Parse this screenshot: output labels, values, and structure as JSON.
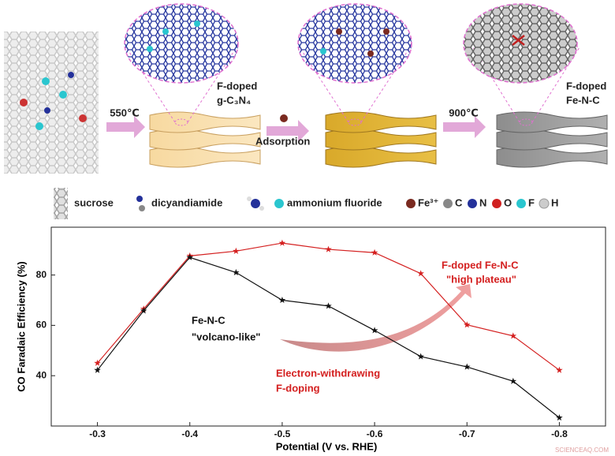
{
  "schematic": {
    "step1_temp": "550℃",
    "product1_line1": "F-doped",
    "product1_line2": "g-C₃N₄",
    "step2": "Adsorption",
    "step3_temp": "900℃",
    "product3_line1": "F-doped",
    "product3_line2": "Fe-N-C",
    "legend": [
      "sucrose",
      "dicyandiamide",
      "ammonium fluoride",
      "Fe³⁺",
      "C",
      "N",
      "O",
      "F",
      "H"
    ]
  },
  "chart_data": {
    "type": "line",
    "x_label": "Potential (V vs. RHE)",
    "y_label": "CO Faradaic Efficiency (%)",
    "x": [
      -0.3,
      -0.35,
      -0.4,
      -0.45,
      -0.5,
      -0.55,
      -0.6,
      -0.65,
      -0.7,
      -0.75,
      -0.8
    ],
    "series": [
      {
        "name": "F-doped Fe-N-C",
        "color": "#d42020",
        "values": [
          45,
          66.5,
          87.6,
          89.5,
          92.7,
          90.2,
          88.9,
          80.6,
          60.2,
          55.8,
          42.2
        ]
      },
      {
        "name": "Fe-N-C",
        "color": "#111111",
        "values": [
          42.2,
          65.8,
          87,
          81,
          70,
          67.7,
          58,
          47.6,
          43.5,
          37.8,
          23.3
        ]
      }
    ],
    "annotations": [
      {
        "text": "\"high plateau\"",
        "color": "#d42020"
      },
      {
        "text": "\"volcano-like\"",
        "color": "#111111"
      },
      {
        "text": "Electron-withdrawing",
        "color": "#d42020"
      },
      {
        "text": "F-doping",
        "color": "#d42020"
      }
    ],
    "xlim": [
      -0.25,
      -0.85
    ],
    "ylim": [
      20,
      99
    ],
    "xticks": [
      -0.3,
      -0.4,
      -0.5,
      -0.6,
      -0.7,
      -0.8
    ],
    "yticks": [
      40,
      60,
      80
    ],
    "watermark": "SCIENCEAQ.COM"
  }
}
